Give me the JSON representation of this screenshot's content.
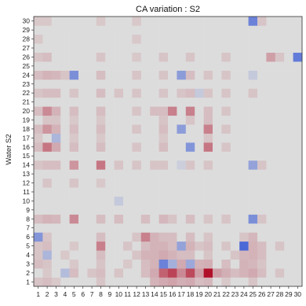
{
  "chart_data": {
    "type": "heatmap",
    "title": "CA variation : S2",
    "xlabel": "",
    "ylabel": "Water S2",
    "x_categories": [
      1,
      2,
      3,
      4,
      5,
      6,
      7,
      8,
      9,
      10,
      11,
      12,
      13,
      14,
      15,
      16,
      17,
      18,
      19,
      20,
      21,
      22,
      23,
      24,
      25,
      26,
      27,
      28,
      29,
      30
    ],
    "y_categories": [
      1,
      2,
      3,
      4,
      5,
      6,
      7,
      8,
      9,
      10,
      11,
      12,
      13,
      14,
      15,
      16,
      17,
      18,
      19,
      20,
      21,
      22,
      23,
      24,
      25,
      26,
      27,
      28,
      29,
      30
    ],
    "value_range": [
      -1,
      1
    ],
    "colormap": [
      "#3b5bd6",
      "#dcdcdc",
      "#b0102a"
    ],
    "grid": false,
    "legend": "none",
    "cells": [
      {
        "x": 1,
        "y": 1,
        "v": 0.12
      },
      {
        "x": 2,
        "y": 1,
        "v": 0.15
      },
      {
        "x": 3,
        "y": 1,
        "v": 0.1
      },
      {
        "x": 8,
        "y": 1,
        "v": 0.12
      },
      {
        "x": 14,
        "y": 1,
        "v": 0.2
      },
      {
        "x": 15,
        "y": 1,
        "v": 0.25
      },
      {
        "x": 16,
        "y": 1,
        "v": 0.28
      },
      {
        "x": 17,
        "y": 1,
        "v": 0.22
      },
      {
        "x": 18,
        "y": 1,
        "v": 0.25
      },
      {
        "x": 19,
        "y": 1,
        "v": 0.15
      },
      {
        "x": 20,
        "y": 1,
        "v": 0.18
      },
      {
        "x": 22,
        "y": 1,
        "v": 0.1
      },
      {
        "x": 25,
        "y": 1,
        "v": 0.12
      },
      {
        "x": 2,
        "y": 2,
        "v": 0.1
      },
      {
        "x": 4,
        "y": 2,
        "v": -0.25
      },
      {
        "x": 5,
        "y": 2,
        "v": 0.15
      },
      {
        "x": 7,
        "y": 2,
        "v": 0.12
      },
      {
        "x": 8,
        "y": 2,
        "v": 0.15
      },
      {
        "x": 10,
        "y": 2,
        "v": 0.12
      },
      {
        "x": 13,
        "y": 2,
        "v": 0.15
      },
      {
        "x": 14,
        "y": 2,
        "v": 0.25
      },
      {
        "x": 15,
        "y": 2,
        "v": 0.6
      },
      {
        "x": 16,
        "y": 2,
        "v": 0.75
      },
      {
        "x": 17,
        "y": 2,
        "v": 0.4
      },
      {
        "x": 18,
        "y": 2,
        "v": 0.72
      },
      {
        "x": 19,
        "y": 2,
        "v": 0.3
      },
      {
        "x": 20,
        "y": 2,
        "v": 1.0
      },
      {
        "x": 21,
        "y": 2,
        "v": 0.3
      },
      {
        "x": 22,
        "y": 2,
        "v": 0.22
      },
      {
        "x": 23,
        "y": 2,
        "v": 0.15
      },
      {
        "x": 24,
        "y": 2,
        "v": 0.2
      },
      {
        "x": 25,
        "y": 2,
        "v": 0.25
      },
      {
        "x": 26,
        "y": 2,
        "v": 0.15
      },
      {
        "x": 28,
        "y": 2,
        "v": 0.12
      },
      {
        "x": 1,
        "y": 3,
        "v": 0.15
      },
      {
        "x": 2,
        "y": 3,
        "v": 0.12
      },
      {
        "x": 5,
        "y": 3,
        "v": 0.1
      },
      {
        "x": 8,
        "y": 3,
        "v": 0.12
      },
      {
        "x": 11,
        "y": 3,
        "v": 0.1
      },
      {
        "x": 13,
        "y": 3,
        "v": 0.15
      },
      {
        "x": 14,
        "y": 3,
        "v": 0.2
      },
      {
        "x": 15,
        "y": 3,
        "v": -0.7
      },
      {
        "x": 16,
        "y": 3,
        "v": -0.35
      },
      {
        "x": 17,
        "y": 3,
        "v": 0.25
      },
      {
        "x": 18,
        "y": 3,
        "v": -0.4
      },
      {
        "x": 19,
        "y": 3,
        "v": 0.2
      },
      {
        "x": 20,
        "y": 3,
        "v": 0.22
      },
      {
        "x": 22,
        "y": 3,
        "v": 0.15
      },
      {
        "x": 24,
        "y": 3,
        "v": 0.2
      },
      {
        "x": 25,
        "y": 3,
        "v": 0.18
      },
      {
        "x": 26,
        "y": 3,
        "v": 0.12
      },
      {
        "x": 1,
        "y": 4,
        "v": 0.12
      },
      {
        "x": 2,
        "y": 4,
        "v": -0.3
      },
      {
        "x": 4,
        "y": 4,
        "v": 0.1
      },
      {
        "x": 8,
        "y": 4,
        "v": 0.15
      },
      {
        "x": 12,
        "y": 4,
        "v": 0.12
      },
      {
        "x": 13,
        "y": 4,
        "v": 0.2
      },
      {
        "x": 14,
        "y": 4,
        "v": 0.2
      },
      {
        "x": 15,
        "y": 4,
        "v": 0.25
      },
      {
        "x": 16,
        "y": 4,
        "v": 0.2
      },
      {
        "x": 17,
        "y": 4,
        "v": 0.15
      },
      {
        "x": 18,
        "y": 4,
        "v": 0.15
      },
      {
        "x": 20,
        "y": 4,
        "v": 0.12
      },
      {
        "x": 23,
        "y": 4,
        "v": 0.12
      },
      {
        "x": 24,
        "y": 4,
        "v": 0.18
      },
      {
        "x": 25,
        "y": 4,
        "v": 0.2
      },
      {
        "x": 26,
        "y": 4,
        "v": 0.15
      },
      {
        "x": 1,
        "y": 5,
        "v": 0.12
      },
      {
        "x": 2,
        "y": 5,
        "v": 0.15
      },
      {
        "x": 5,
        "y": 5,
        "v": 0.1
      },
      {
        "x": 8,
        "y": 5,
        "v": 0.45
      },
      {
        "x": 11,
        "y": 5,
        "v": 0.12
      },
      {
        "x": 13,
        "y": 5,
        "v": 0.15
      },
      {
        "x": 14,
        "y": 5,
        "v": 0.2
      },
      {
        "x": 15,
        "y": 5,
        "v": 0.2
      },
      {
        "x": 16,
        "y": 5,
        "v": 0.15
      },
      {
        "x": 17,
        "y": 5,
        "v": -0.45
      },
      {
        "x": 18,
        "y": 5,
        "v": 0.2
      },
      {
        "x": 19,
        "y": 5,
        "v": 0.12
      },
      {
        "x": 20,
        "y": 5,
        "v": 0.15
      },
      {
        "x": 22,
        "y": 5,
        "v": 0.12
      },
      {
        "x": 24,
        "y": 5,
        "v": -0.9
      },
      {
        "x": 25,
        "y": 5,
        "v": 0.2
      },
      {
        "x": 26,
        "y": 5,
        "v": 0.15
      },
      {
        "x": 28,
        "y": 5,
        "v": 0.12
      },
      {
        "x": 1,
        "y": 6,
        "v": -0.55
      },
      {
        "x": 2,
        "y": 6,
        "v": 0.12
      },
      {
        "x": 8,
        "y": 6,
        "v": 0.15
      },
      {
        "x": 12,
        "y": 6,
        "v": 0.12
      },
      {
        "x": 13,
        "y": 6,
        "v": 0.45
      },
      {
        "x": 14,
        "y": 6,
        "v": 0.2
      },
      {
        "x": 15,
        "y": 6,
        "v": 0.15
      },
      {
        "x": 16,
        "y": 6,
        "v": 0.15
      },
      {
        "x": 18,
        "y": 6,
        "v": 0.15
      },
      {
        "x": 20,
        "y": 6,
        "v": 0.12
      },
      {
        "x": 24,
        "y": 6,
        "v": 0.12
      },
      {
        "x": 25,
        "y": 6,
        "v": 0.18
      },
      {
        "x": 1,
        "y": 8,
        "v": 0.15
      },
      {
        "x": 2,
        "y": 8,
        "v": 0.2
      },
      {
        "x": 3,
        "y": 8,
        "v": 0.18
      },
      {
        "x": 5,
        "y": 8,
        "v": 0.4
      },
      {
        "x": 8,
        "y": 8,
        "v": 0.15
      },
      {
        "x": 10,
        "y": 8,
        "v": 0.15
      },
      {
        "x": 13,
        "y": 8,
        "v": 0.15
      },
      {
        "x": 15,
        "y": 8,
        "v": 0.18
      },
      {
        "x": 16,
        "y": 8,
        "v": 0.12
      },
      {
        "x": 18,
        "y": 8,
        "v": 0.15
      },
      {
        "x": 20,
        "y": 8,
        "v": 0.12
      },
      {
        "x": 22,
        "y": 8,
        "v": 0.12
      },
      {
        "x": 25,
        "y": 8,
        "v": -0.6
      },
      {
        "x": 26,
        "y": 8,
        "v": 0.12
      },
      {
        "x": 10,
        "y": 10,
        "v": -0.15
      },
      {
        "x": 2,
        "y": 12,
        "v": 0.12
      },
      {
        "x": 5,
        "y": 12,
        "v": 0.12
      },
      {
        "x": 8,
        "y": 12,
        "v": 0.1
      },
      {
        "x": 1,
        "y": 14,
        "v": 0.12
      },
      {
        "x": 2,
        "y": 14,
        "v": 0.15
      },
      {
        "x": 3,
        "y": 14,
        "v": 0.15
      },
      {
        "x": 5,
        "y": 14,
        "v": 0.35
      },
      {
        "x": 8,
        "y": 14,
        "v": 0.5
      },
      {
        "x": 10,
        "y": 14,
        "v": 0.12
      },
      {
        "x": 12,
        "y": 14,
        "v": 0.12
      },
      {
        "x": 14,
        "y": 14,
        "v": 0.12
      },
      {
        "x": 15,
        "y": 14,
        "v": 0.12
      },
      {
        "x": 17,
        "y": 14,
        "v": -0.1
      },
      {
        "x": 18,
        "y": 14,
        "v": 0.12
      },
      {
        "x": 20,
        "y": 14,
        "v": 0.12
      },
      {
        "x": 25,
        "y": 14,
        "v": -0.45
      },
      {
        "x": 26,
        "y": 14,
        "v": 0.12
      },
      {
        "x": 1,
        "y": 16,
        "v": 0.15
      },
      {
        "x": 2,
        "y": 16,
        "v": 0.5
      },
      {
        "x": 3,
        "y": 16,
        "v": 0.25
      },
      {
        "x": 5,
        "y": 16,
        "v": 0.15
      },
      {
        "x": 8,
        "y": 16,
        "v": 0.15
      },
      {
        "x": 12,
        "y": 16,
        "v": 0.12
      },
      {
        "x": 15,
        "y": 16,
        "v": 0.15
      },
      {
        "x": 18,
        "y": 16,
        "v": -0.55
      },
      {
        "x": 20,
        "y": 16,
        "v": 0.5
      },
      {
        "x": 22,
        "y": 16,
        "v": 0.12
      },
      {
        "x": 1,
        "y": 17,
        "v": 0.1
      },
      {
        "x": 3,
        "y": 17,
        "v": -0.3
      },
      {
        "x": 5,
        "y": 17,
        "v": 0.1
      },
      {
        "x": 8,
        "y": 17,
        "v": 0.1
      },
      {
        "x": 15,
        "y": 17,
        "v": 0.1
      },
      {
        "x": 20,
        "y": 17,
        "v": 0.12
      },
      {
        "x": 1,
        "y": 18,
        "v": 0.15
      },
      {
        "x": 2,
        "y": 18,
        "v": 0.35
      },
      {
        "x": 3,
        "y": 18,
        "v": 0.2
      },
      {
        "x": 5,
        "y": 18,
        "v": 0.15
      },
      {
        "x": 8,
        "y": 18,
        "v": 0.15
      },
      {
        "x": 12,
        "y": 18,
        "v": 0.12
      },
      {
        "x": 15,
        "y": 18,
        "v": 0.15
      },
      {
        "x": 17,
        "y": 18,
        "v": -0.5
      },
      {
        "x": 20,
        "y": 18,
        "v": 0.45
      },
      {
        "x": 22,
        "y": 18,
        "v": 0.12
      },
      {
        "x": 2,
        "y": 19,
        "v": 0.12
      },
      {
        "x": 3,
        "y": 19,
        "v": 0.12
      },
      {
        "x": 5,
        "y": 19,
        "v": 0.1
      },
      {
        "x": 8,
        "y": 19,
        "v": 0.1
      },
      {
        "x": 15,
        "y": 19,
        "v": 0.12
      },
      {
        "x": 18,
        "y": 19,
        "v": 0.12
      },
      {
        "x": 20,
        "y": 19,
        "v": 0.15
      },
      {
        "x": 1,
        "y": 20,
        "v": 0.15
      },
      {
        "x": 2,
        "y": 20,
        "v": 0.4
      },
      {
        "x": 3,
        "y": 20,
        "v": 0.2
      },
      {
        "x": 5,
        "y": 20,
        "v": 0.15
      },
      {
        "x": 8,
        "y": 20,
        "v": 0.15
      },
      {
        "x": 12,
        "y": 20,
        "v": 0.12
      },
      {
        "x": 14,
        "y": 20,
        "v": 0.15
      },
      {
        "x": 15,
        "y": 20,
        "v": 0.15
      },
      {
        "x": 16,
        "y": 20,
        "v": 0.45
      },
      {
        "x": 18,
        "y": 20,
        "v": 0.45
      },
      {
        "x": 20,
        "y": 20,
        "v": 0.15
      },
      {
        "x": 22,
        "y": 20,
        "v": 0.12
      },
      {
        "x": 1,
        "y": 22,
        "v": 0.12
      },
      {
        "x": 2,
        "y": 22,
        "v": 0.15
      },
      {
        "x": 3,
        "y": 22,
        "v": 0.15
      },
      {
        "x": 5,
        "y": 22,
        "v": 0.12
      },
      {
        "x": 8,
        "y": 22,
        "v": 0.15
      },
      {
        "x": 10,
        "y": 22,
        "v": 0.12
      },
      {
        "x": 12,
        "y": 22,
        "v": 0.12
      },
      {
        "x": 15,
        "y": 22,
        "v": 0.12
      },
      {
        "x": 17,
        "y": 22,
        "v": 0.12
      },
      {
        "x": 18,
        "y": 22,
        "v": 0.15
      },
      {
        "x": 19,
        "y": 22,
        "v": -0.15
      },
      {
        "x": 20,
        "y": 22,
        "v": 0.12
      },
      {
        "x": 22,
        "y": 22,
        "v": 0.12
      },
      {
        "x": 25,
        "y": 22,
        "v": 0.12
      },
      {
        "x": 1,
        "y": 24,
        "v": 0.15
      },
      {
        "x": 2,
        "y": 24,
        "v": 0.2
      },
      {
        "x": 3,
        "y": 24,
        "v": 0.18
      },
      {
        "x": 4,
        "y": 24,
        "v": 0.12
      },
      {
        "x": 5,
        "y": 24,
        "v": -0.6
      },
      {
        "x": 8,
        "y": 24,
        "v": 0.15
      },
      {
        "x": 12,
        "y": 24,
        "v": 0.12
      },
      {
        "x": 15,
        "y": 24,
        "v": 0.12
      },
      {
        "x": 17,
        "y": 24,
        "v": -0.5
      },
      {
        "x": 18,
        "y": 24,
        "v": 0.15
      },
      {
        "x": 20,
        "y": 24,
        "v": 0.12
      },
      {
        "x": 22,
        "y": 24,
        "v": 0.12
      },
      {
        "x": 25,
        "y": 24,
        "v": -0.15
      },
      {
        "x": 1,
        "y": 26,
        "v": 0.12
      },
      {
        "x": 2,
        "y": 26,
        "v": 0.15
      },
      {
        "x": 8,
        "y": 26,
        "v": 0.12
      },
      {
        "x": 12,
        "y": 26,
        "v": 0.1
      },
      {
        "x": 15,
        "y": 26,
        "v": 0.12
      },
      {
        "x": 18,
        "y": 26,
        "v": 0.12
      },
      {
        "x": 22,
        "y": 26,
        "v": 0.12
      },
      {
        "x": 27,
        "y": 26,
        "v": 0.3
      },
      {
        "x": 28,
        "y": 26,
        "v": 0.12
      },
      {
        "x": 30,
        "y": 26,
        "v": -0.75
      },
      {
        "x": 1,
        "y": 28,
        "v": 0.1
      },
      {
        "x": 12,
        "y": 28,
        "v": 0.1
      },
      {
        "x": 1,
        "y": 30,
        "v": 0.1
      },
      {
        "x": 2,
        "y": 30,
        "v": 0.1
      },
      {
        "x": 8,
        "y": 30,
        "v": 0.1
      },
      {
        "x": 12,
        "y": 30,
        "v": 0.1
      },
      {
        "x": 25,
        "y": 30,
        "v": -0.7
      },
      {
        "x": 26,
        "y": 30,
        "v": 0.12
      }
    ]
  }
}
